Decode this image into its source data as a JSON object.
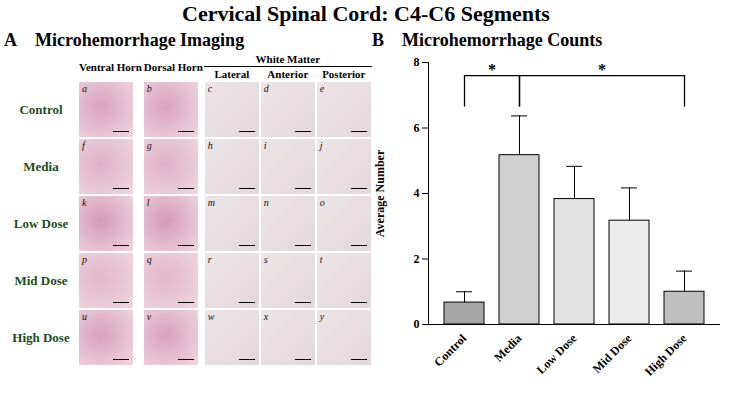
{
  "title": "Cervical Spinal Cord: C4-C6 Segments",
  "panel_a": {
    "panel_label": "A",
    "title": "Microhemorrhage Imaging",
    "column_group": "White Matter",
    "columns": [
      "Ventral Horn",
      "Dorsal Horn",
      "Lateral",
      "Anterior",
      "Posterior"
    ],
    "grouped_columns": [
      "Lateral",
      "Anterior",
      "Posterior"
    ],
    "rows": [
      "Control",
      "Media",
      "Low Dose",
      "Mid Dose",
      "High Dose"
    ],
    "tiles": [
      [
        "a",
        "b",
        "c",
        "d",
        "e"
      ],
      [
        "f",
        "g",
        "h",
        "i",
        "j"
      ],
      [
        "k",
        "l",
        "m",
        "n",
        "o"
      ],
      [
        "p",
        "q",
        "r",
        "s",
        "t"
      ],
      [
        "u",
        "v",
        "w",
        "x",
        "y"
      ]
    ]
  },
  "chart_data": {
    "type": "bar",
    "panel_label": "B",
    "title": "Microhemorrhage Counts",
    "categories": [
      "Control",
      "Media",
      "Low Dose",
      "Mid Dose",
      "High Dose"
    ],
    "values": [
      0.67,
      5.17,
      3.83,
      3.17,
      1.0
    ],
    "errors": [
      0.33,
      1.2,
      1.0,
      1.0,
      0.63
    ],
    "colors": [
      "#a6a6a6",
      "#d0d0d0",
      "#e2e2e2",
      "#ebebeb",
      "#bfbfbf"
    ],
    "ylabel": "Average Number",
    "ylim": [
      0,
      8
    ],
    "yticks": [
      0,
      2,
      4,
      6,
      8
    ],
    "annotations": [
      {
        "from": "Control",
        "to": "Media",
        "y": 7.6,
        "label": "*"
      },
      {
        "from": "Media",
        "to": "High Dose",
        "y": 7.6,
        "label": "*"
      }
    ]
  }
}
